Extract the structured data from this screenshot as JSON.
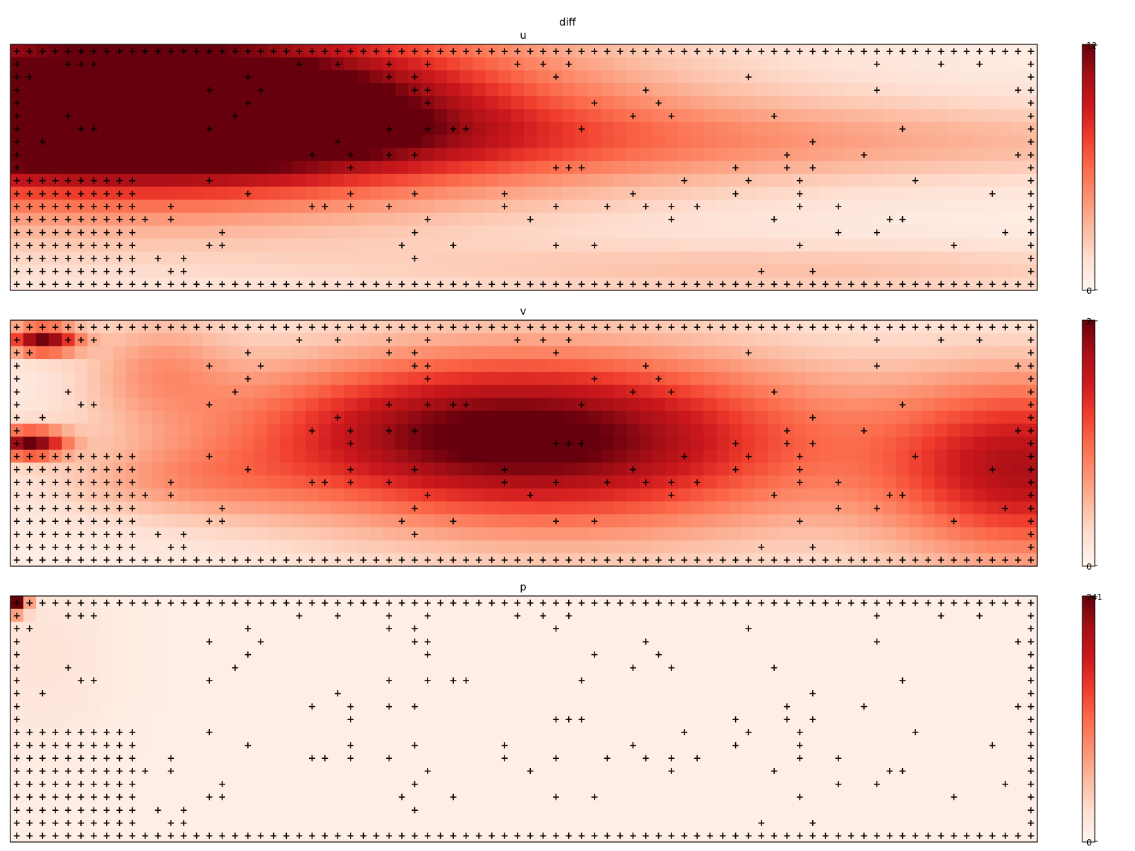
{
  "figure_title": "diff",
  "colormap": [
    "#fff5f0",
    "#fee0d2",
    "#fcbba1",
    "#fc9272",
    "#fb6a4a",
    "#ef3b2c",
    "#cb181d",
    "#a50f15",
    "#67000d"
  ],
  "marker_symbol": "+",
  "chart_data": [
    {
      "type": "heatmap",
      "title": "u",
      "grid": {
        "cols": 80,
        "rows": 19
      },
      "vmin": 0,
      "vmax": 12,
      "colorbar_ticks": [
        "0",
        "12"
      ],
      "hotspots": [
        {
          "col": 11,
          "row": 4,
          "sx": 16,
          "sy": 4,
          "value": 12
        },
        {
          "col": 5,
          "row": 5,
          "sx": 30,
          "sy": 6,
          "value": 7
        },
        {
          "col": 40,
          "row": 7,
          "sx": 55,
          "sy": 2.2,
          "value": 3
        },
        {
          "col": 62,
          "row": 17,
          "sx": 25,
          "sy": 1.5,
          "value": 2.2
        }
      ],
      "background_value": 0.4
    },
    {
      "type": "heatmap",
      "title": "v",
      "grid": {
        "cols": 80,
        "rows": 19
      },
      "vmin": 0,
      "vmax": 2,
      "colorbar_ticks": [
        "0",
        "2"
      ],
      "hotspots": [
        {
          "col": 44,
          "row": 9,
          "sx": 15,
          "sy": 5,
          "value": 1.5
        },
        {
          "col": 31,
          "row": 8,
          "sx": 13,
          "sy": 4,
          "value": 0.8
        },
        {
          "col": 79,
          "row": 11,
          "sx": 8,
          "sy": 5,
          "value": 1.5
        },
        {
          "col": 2,
          "row": 1,
          "sx": 2,
          "sy": 0.8,
          "value": 1.8
        },
        {
          "col": 1,
          "row": 9,
          "sx": 2,
          "sy": 0.8,
          "value": 1.8
        },
        {
          "col": 11,
          "row": 3,
          "sx": 4,
          "sy": 3,
          "value": 0.5
        },
        {
          "col": 13,
          "row": 12,
          "sx": 7,
          "sy": 2,
          "value": 0.4
        }
      ],
      "background_value": 0.1
    },
    {
      "type": "heatmap",
      "title": "p",
      "grid": {
        "cols": 80,
        "rows": 19
      },
      "vmin": 0,
      "vmax": 241,
      "colorbar_ticks": [
        "0",
        "241"
      ],
      "hotspots": [
        {
          "col": 0,
          "row": 0,
          "sx": 0.6,
          "sy": 0.6,
          "value": 230
        },
        {
          "col": 2,
          "row": 4,
          "sx": 4,
          "sy": 5,
          "value": 15
        }
      ],
      "background_value": 10
    }
  ],
  "markers": {
    "boundary_rows": [
      0,
      18
    ],
    "boundary_cols": [
      0,
      79
    ],
    "obstacle_block": {
      "cols": [
        0,
        9
      ],
      "rows": [
        10,
        18
      ]
    },
    "scattered": [
      [
        4,
        1
      ],
      [
        5,
        1
      ],
      [
        6,
        1
      ],
      [
        22,
        1
      ],
      [
        25,
        1
      ],
      [
        29,
        1
      ],
      [
        32,
        1
      ],
      [
        39,
        1
      ],
      [
        41,
        1
      ],
      [
        43,
        1
      ],
      [
        67,
        1
      ],
      [
        72,
        1
      ],
      [
        75,
        1
      ],
      [
        1,
        2
      ],
      [
        18,
        2
      ],
      [
        29,
        2
      ],
      [
        31,
        2
      ],
      [
        42,
        2
      ],
      [
        57,
        2
      ],
      [
        15,
        3
      ],
      [
        19,
        3
      ],
      [
        31,
        3
      ],
      [
        32,
        3
      ],
      [
        49,
        3
      ],
      [
        67,
        3
      ],
      [
        78,
        3
      ],
      [
        18,
        4
      ],
      [
        32,
        4
      ],
      [
        45,
        4
      ],
      [
        50,
        4
      ],
      [
        4,
        5
      ],
      [
        17,
        5
      ],
      [
        48,
        5
      ],
      [
        51,
        5
      ],
      [
        59,
        5
      ],
      [
        5,
        6
      ],
      [
        6,
        6
      ],
      [
        15,
        6
      ],
      [
        29,
        6
      ],
      [
        32,
        6
      ],
      [
        34,
        6
      ],
      [
        35,
        6
      ],
      [
        44,
        6
      ],
      [
        69,
        6
      ],
      [
        2,
        7
      ],
      [
        25,
        7
      ],
      [
        62,
        7
      ],
      [
        23,
        8
      ],
      [
        26,
        8
      ],
      [
        29,
        8
      ],
      [
        31,
        8
      ],
      [
        60,
        8
      ],
      [
        66,
        8
      ],
      [
        78,
        8
      ],
      [
        26,
        9
      ],
      [
        42,
        9
      ],
      [
        43,
        9
      ],
      [
        44,
        9
      ],
      [
        56,
        9
      ],
      [
        60,
        9
      ],
      [
        62,
        9
      ],
      [
        15,
        10
      ],
      [
        52,
        10
      ],
      [
        57,
        10
      ],
      [
        61,
        10
      ],
      [
        70,
        10
      ],
      [
        18,
        11
      ],
      [
        26,
        11
      ],
      [
        31,
        11
      ],
      [
        38,
        11
      ],
      [
        48,
        11
      ],
      [
        56,
        11
      ],
      [
        61,
        11
      ],
      [
        76,
        11
      ],
      [
        12,
        12
      ],
      [
        23,
        12
      ],
      [
        24,
        12
      ],
      [
        26,
        12
      ],
      [
        29,
        12
      ],
      [
        38,
        12
      ],
      [
        42,
        12
      ],
      [
        46,
        12
      ],
      [
        49,
        12
      ],
      [
        51,
        12
      ],
      [
        53,
        12
      ],
      [
        61,
        12
      ],
      [
        64,
        12
      ],
      [
        10,
        13
      ],
      [
        12,
        13
      ],
      [
        32,
        13
      ],
      [
        40,
        13
      ],
      [
        51,
        13
      ],
      [
        59,
        13
      ],
      [
        68,
        13
      ],
      [
        69,
        13
      ],
      [
        16,
        14
      ],
      [
        31,
        14
      ],
      [
        64,
        14
      ],
      [
        67,
        14
      ],
      [
        77,
        14
      ],
      [
        15,
        15
      ],
      [
        16,
        15
      ],
      [
        30,
        15
      ],
      [
        34,
        15
      ],
      [
        42,
        15
      ],
      [
        45,
        15
      ],
      [
        61,
        15
      ],
      [
        73,
        15
      ],
      [
        11,
        16
      ],
      [
        13,
        16
      ],
      [
        31,
        16
      ],
      [
        12,
        17
      ],
      [
        13,
        17
      ],
      [
        58,
        17
      ],
      [
        62,
        17
      ],
      [
        28,
        18
      ]
    ]
  }
}
